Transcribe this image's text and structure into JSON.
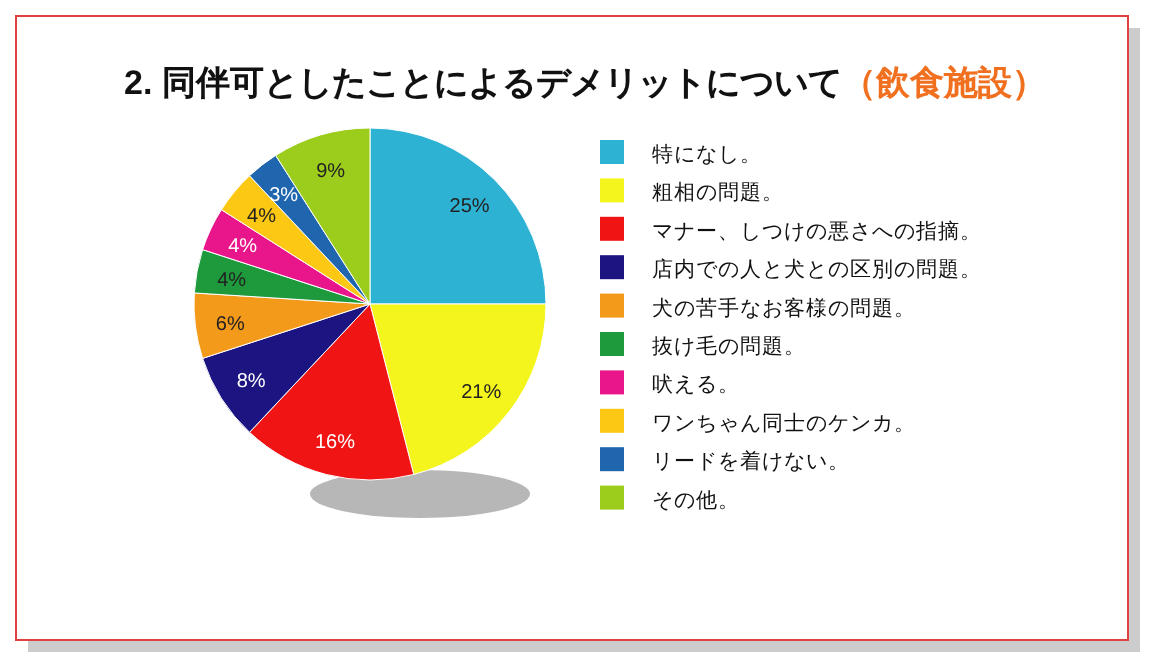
{
  "chart_data": {
    "type": "pie",
    "title": "2. 同伴可としたことによるデメリットについて",
    "subtitle": "（飲食施設）",
    "categories": [
      "特になし。",
      "粗相の問題。",
      "マナー、しつけの悪さへの指摘。",
      "店内での人と犬との区別の問題。",
      "犬の苦手なお客様の問題。",
      "抜け毛の問題。",
      "吠える。",
      "ワンちゃん同士のケンカ。",
      "リードを着けない。",
      "その他。"
    ],
    "values": [
      25,
      21,
      16,
      8,
      6,
      4,
      4,
      4,
      3,
      9
    ],
    "colors": [
      "#2eb2d4",
      "#f5f51e",
      "#f01414",
      "#1c1480",
      "#f39a1a",
      "#1e9a3c",
      "#e8168a",
      "#fcc814",
      "#2066ae",
      "#9ccc1c"
    ],
    "value_labels": [
      "25%",
      "21%",
      "16%",
      "8%",
      "6%",
      "4%",
      "4%",
      "4%",
      "3%",
      "9%"
    ],
    "legend": "right"
  }
}
